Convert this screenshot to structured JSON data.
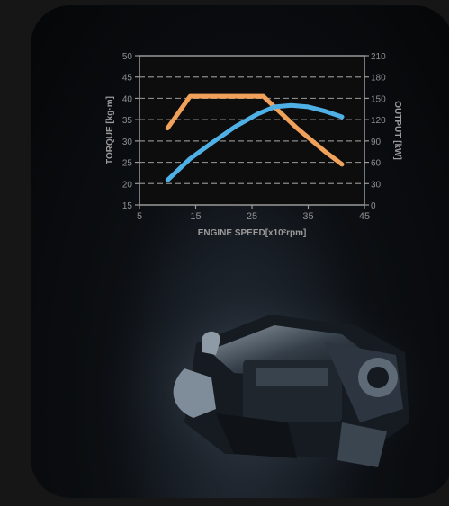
{
  "chart_data": {
    "type": "line",
    "title": "",
    "xlabel": "ENGINE SPEED[x10²rpm]",
    "ylabel_left": "TORQUE [kg·m]",
    "ylabel_right": "OUTPUT [kW]",
    "x_ticks": [
      5,
      15,
      25,
      35,
      45
    ],
    "xlim": [
      5,
      45
    ],
    "y_left_ticks": [
      15,
      20,
      25,
      30,
      35,
      40,
      45,
      50
    ],
    "y_left_lim": [
      15,
      50
    ],
    "y_right_ticks": [
      0,
      30,
      60,
      90,
      120,
      150,
      180,
      210
    ],
    "y_right_lim": [
      0,
      210
    ],
    "grid": true,
    "series": [
      {
        "axis": "left",
        "color": "#f0a25a",
        "points": [
          [
            10,
            33
          ],
          [
            14,
            40.5
          ],
          [
            18,
            40.5
          ],
          [
            22,
            40.5
          ],
          [
            27,
            40.5
          ],
          [
            33,
            33
          ],
          [
            38,
            27.5
          ],
          [
            41,
            24.5
          ]
        ]
      },
      {
        "axis": "right",
        "color": "#4fb0e6",
        "points": [
          [
            10,
            35
          ],
          [
            14,
            65
          ],
          [
            18,
            88
          ],
          [
            22,
            110
          ],
          [
            26,
            128
          ],
          [
            29,
            138
          ],
          [
            32,
            140
          ],
          [
            35,
            138
          ],
          [
            38,
            132
          ],
          [
            41,
            124
          ]
        ]
      }
    ]
  }
}
